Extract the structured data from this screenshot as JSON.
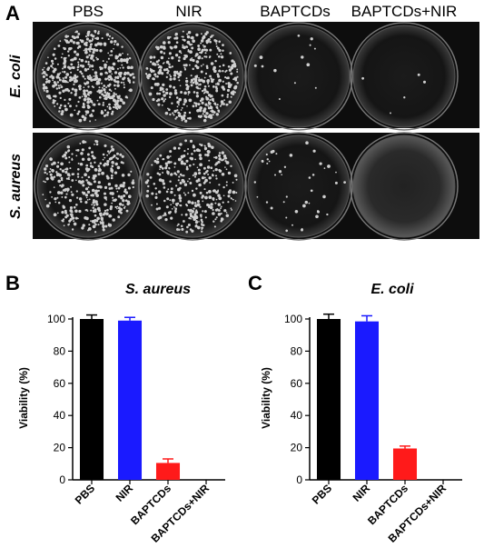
{
  "panel_a": {
    "letter": "A",
    "columns": [
      "PBS",
      "NIR",
      "BAPTCDs",
      "BAPTCDs+NIR"
    ],
    "rows": [
      "E. coli",
      "S. aureus"
    ]
  },
  "chart_data": [
    {
      "panel": "B",
      "type": "bar",
      "title": "S. aureus",
      "xlabel": "",
      "ylabel": "Viability (%)",
      "ylim": [
        0,
        100
      ],
      "yticks": [
        0,
        20,
        40,
        60,
        80,
        100
      ],
      "categories": [
        "PBS",
        "NIR",
        "BAPTCDs",
        "BAPTCDs+NIR"
      ],
      "values": [
        100,
        99,
        10.5,
        0
      ],
      "errors": [
        2.5,
        2,
        2.5,
        0
      ],
      "colors": [
        "#000000",
        "#1a1aff",
        "#ff1a1a",
        "#ff1a1a"
      ]
    },
    {
      "panel": "C",
      "type": "bar",
      "title": "E. coli",
      "xlabel": "",
      "ylabel": "Viability (%)",
      "ylim": [
        0,
        100
      ],
      "yticks": [
        0,
        20,
        40,
        60,
        80,
        100
      ],
      "categories": [
        "PBS",
        "NIR",
        "BAPTCDs",
        "BAPTCDs+NIR"
      ],
      "values": [
        100,
        98.5,
        19.5,
        0
      ],
      "errors": [
        3,
        3.5,
        1.5,
        0
      ],
      "colors": [
        "#000000",
        "#1a1aff",
        "#ff1a1a",
        "#ff1a1a"
      ]
    }
  ]
}
